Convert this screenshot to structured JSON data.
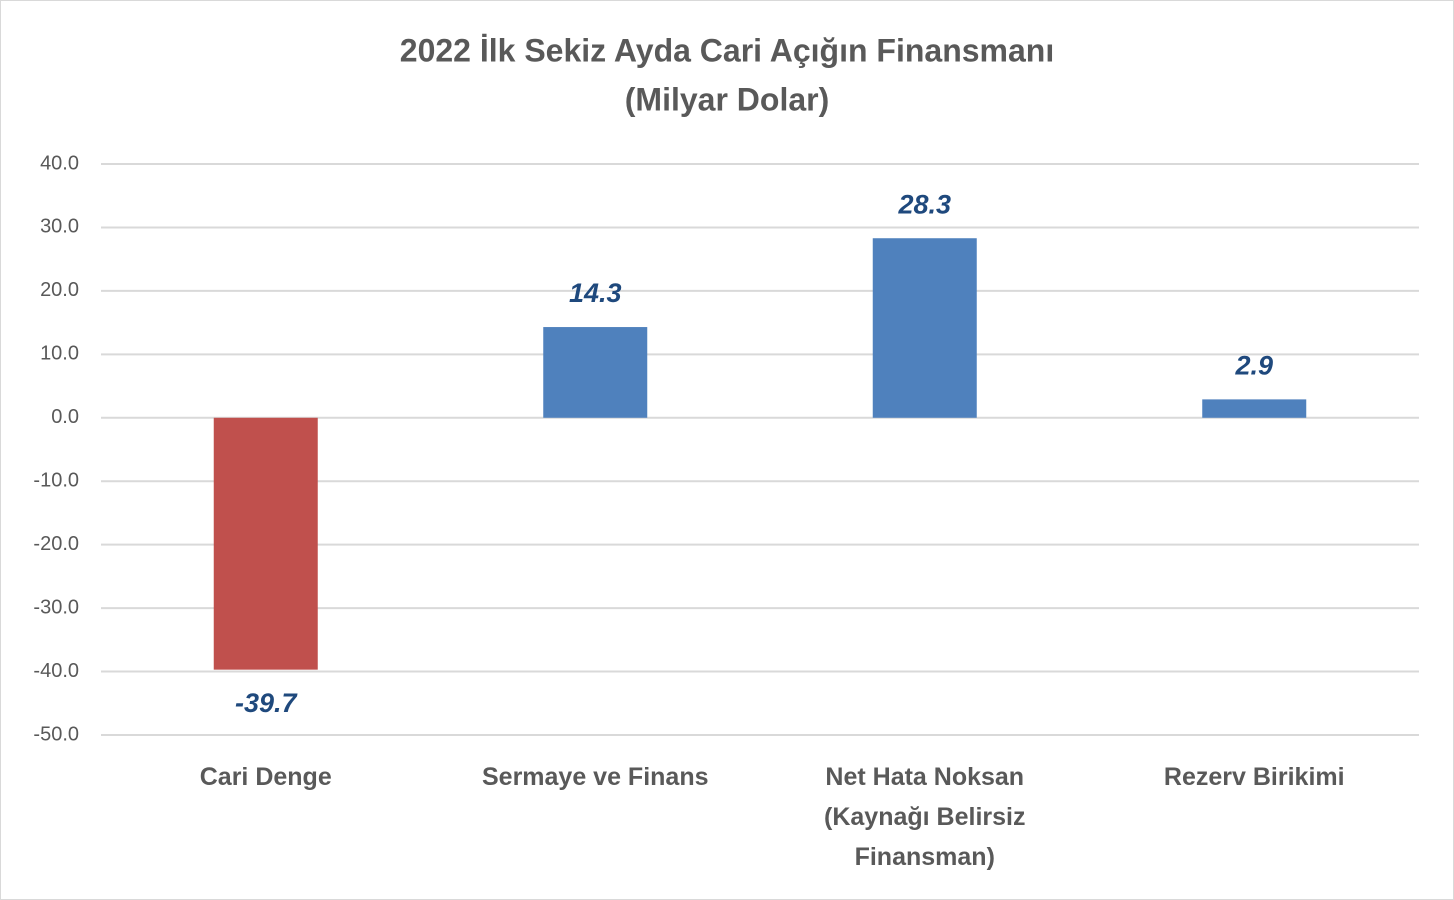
{
  "chart_data": {
    "type": "bar",
    "title": "2022 İlk Sekiz Ayda Cari Açığın Finansmanı",
    "subtitle": "(Milyar Dolar)",
    "categories": [
      "Cari Denge",
      "Sermaye ve Finans",
      "Net Hata Noksan (Kaynağı Belirsiz Finansman)",
      "Rezerv Birikimi"
    ],
    "values": [
      -39.7,
      14.3,
      28.3,
      2.9
    ],
    "colors": [
      "#c0504d",
      "#4f81bd",
      "#4f81bd",
      "#4f81bd"
    ],
    "ylim": [
      -50,
      40
    ],
    "yticks": [
      {
        "value": 40,
        "label": "40.0"
      },
      {
        "value": 30,
        "label": "30.0"
      },
      {
        "value": 20,
        "label": "20.0"
      },
      {
        "value": 10,
        "label": "10.0"
      },
      {
        "value": 0,
        "label": "0.0"
      },
      {
        "value": -10,
        "label": "-10.0"
      },
      {
        "value": -20,
        "label": "-20.0"
      },
      {
        "value": -30,
        "label": "-30.0"
      },
      {
        "value": -40,
        "label": "-40.0"
      },
      {
        "value": -50,
        "label": "-50.0"
      }
    ],
    "grid": true
  }
}
